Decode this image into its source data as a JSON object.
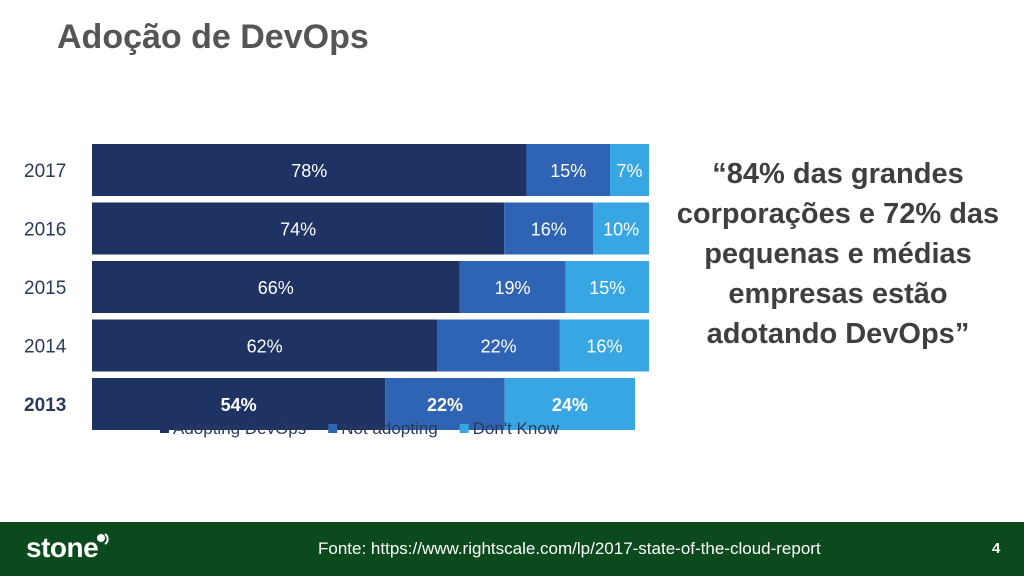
{
  "slide": {
    "title": "Adoção de DevOps",
    "quote": "“84% das grandes corporações e 72% das pequenas e médias empresas estão adotando DevOps”",
    "source": "Fonte: https://www.rightscale.com/lp/2017-state-of-the-cloud-report",
    "page_number": "4",
    "logo_text": "stone"
  },
  "chart_data": {
    "type": "bar",
    "orientation": "horizontal",
    "stacked": true,
    "categories": [
      "2017",
      "2016",
      "2015",
      "2014",
      "2013"
    ],
    "series": [
      {
        "name": "Adopting DevOps",
        "values": [
          78,
          74,
          66,
          62,
          54
        ],
        "labels": [
          "78%",
          "74%",
          "66%",
          "62%",
          "54%"
        ],
        "color": "#1f3264"
      },
      {
        "name": "Not adopting",
        "values": [
          15,
          16,
          19,
          22,
          22
        ],
        "labels": [
          "15%",
          "16%",
          "19%",
          "22%",
          "22%"
        ],
        "color": "#2f64b4"
      },
      {
        "name": "Don't Know",
        "values": [
          7,
          10,
          15,
          16,
          24
        ],
        "labels": [
          "7%",
          "10%",
          "15%",
          "16%",
          "24%"
        ],
        "color": "#37a6e2"
      }
    ],
    "xlim": [
      0,
      100
    ],
    "legend": "bottom",
    "grid": false,
    "colors": {
      "adopting": "#1f3264",
      "not_adopting": "#2f64b4",
      "dont_know": "#37a6e2",
      "footer": "#0b4a1c"
    }
  }
}
